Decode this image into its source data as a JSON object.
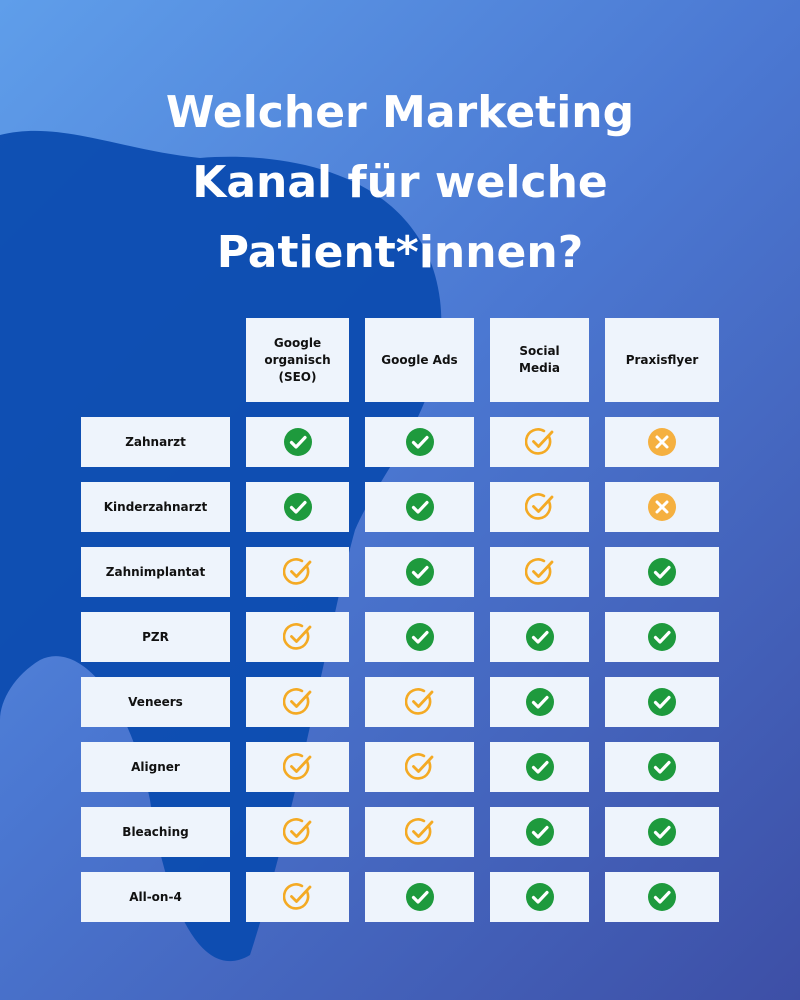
{
  "title_lines": [
    "Welcher Marketing",
    "Kanal für welche",
    "Patient*innen?"
  ],
  "table": {
    "columns": [
      "Google organisch (SEO)",
      "Google Ads",
      "Social Media",
      "Praxisflyer"
    ],
    "rows": [
      "Zahnarzt",
      "Kinderzahnarzt",
      "Zahnimplantat",
      "PZR",
      "Veneers",
      "Aligner",
      "Bleaching",
      "All-on-4"
    ]
  }
}
